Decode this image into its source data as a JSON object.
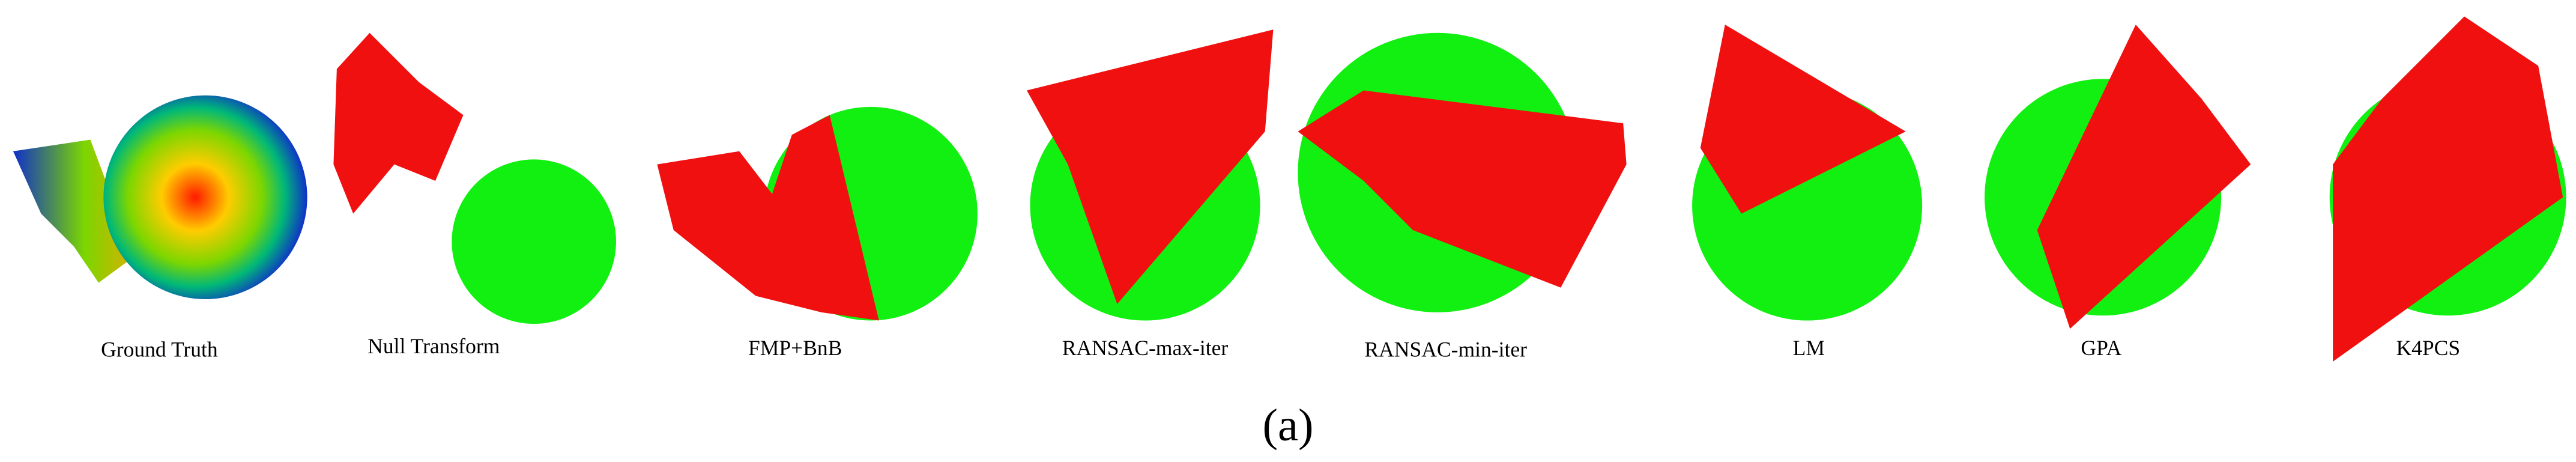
{
  "panels": [
    {
      "label": "Ground Truth"
    },
    {
      "label": "Null Transform"
    },
    {
      "label": "FMP+BnB"
    },
    {
      "label": "RANSAC-max-iter"
    },
    {
      "label": "RANSAC-min-iter"
    },
    {
      "label": "LM"
    },
    {
      "label": "GPA"
    },
    {
      "label": "K4PCS"
    }
  ],
  "caption": "(a)"
}
